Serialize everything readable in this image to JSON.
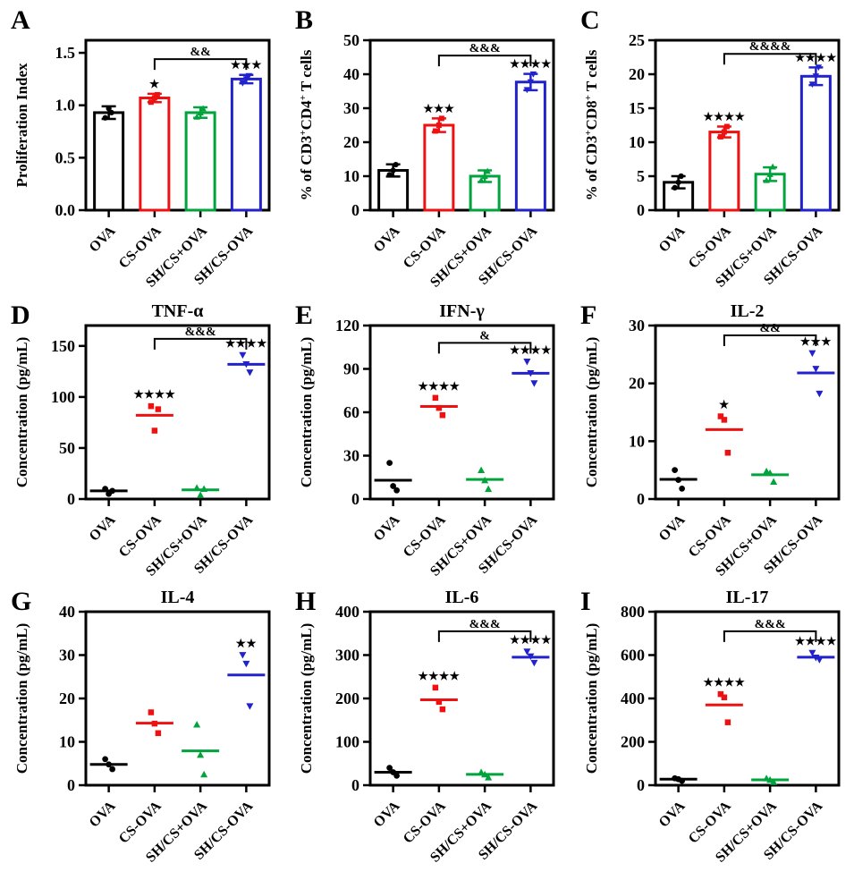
{
  "figure": {
    "background": "#ffffff",
    "panel_letters": [
      "A",
      "B",
      "C",
      "D",
      "E",
      "F",
      "G",
      "H",
      "I"
    ],
    "groups": [
      "OVA",
      "CS-OVA",
      "SH/CS+OVA",
      "SH/CS-OVA"
    ],
    "group_colors": [
      "#000000",
      "#EE1111",
      "#00A33C",
      "#2222CC"
    ],
    "group_markers": [
      "circle",
      "square",
      "triangle-up",
      "triangle-down"
    ]
  },
  "chart_data": [
    {
      "panel": "A",
      "type": "bar",
      "title": "",
      "ylabel": "Proliferation Index",
      "ylabel_segments": [
        {
          "t": "Proliferation Index"
        }
      ],
      "categories": [
        "OVA",
        "CS-OVA",
        "SH/CS+OVA",
        "SH/CS-OVA"
      ],
      "values": [
        0.93,
        1.07,
        0.93,
        1.25
      ],
      "errors": [
        0.06,
        0.04,
        0.05,
        0.04
      ],
      "points": [
        [
          0.88,
          0.93,
          0.97
        ],
        [
          1.03,
          1.1,
          1.07
        ],
        [
          0.89,
          0.97,
          0.93
        ],
        [
          1.21,
          1.28,
          1.25
        ]
      ],
      "sig": [
        "",
        "*",
        "",
        "***"
      ],
      "bracket": {
        "from": 1,
        "to": 3,
        "label": "&&",
        "y": 1.44
      },
      "yticks": [
        0,
        0.5,
        1,
        1.5
      ],
      "ytick_labels": [
        "0.0",
        "0.5",
        "1.0",
        "1.5"
      ],
      "ylim": [
        0,
        1.62
      ]
    },
    {
      "panel": "B",
      "type": "bar",
      "title": "",
      "ylabel": "% of CD3+CD4+ T cells",
      "ylabel_segments": [
        {
          "t": "% of CD3"
        },
        {
          "t": "+",
          "sup": true
        },
        {
          "t": "CD4"
        },
        {
          "t": "+",
          "sup": true
        },
        {
          "t": " T cells"
        }
      ],
      "categories": [
        "OVA",
        "CS-OVA",
        "SH/CS+OVA",
        "SH/CS-OVA"
      ],
      "values": [
        11.7,
        25.0,
        10.0,
        37.7
      ],
      "errors": [
        1.8,
        2.0,
        1.7,
        2.4
      ],
      "points": [
        [
          10.4,
          13.4,
          11.7
        ],
        [
          23.3,
          27,
          25
        ],
        [
          8.8,
          11.5,
          10
        ],
        [
          35.4,
          40,
          37.7
        ]
      ],
      "sig": [
        "",
        "***",
        "",
        "****"
      ],
      "bracket": {
        "from": 1,
        "to": 3,
        "label": "&&&",
        "y": 45.5
      },
      "yticks": [
        0,
        10,
        20,
        30,
        40,
        50
      ],
      "ytick_labels": [
        "0",
        "10",
        "20",
        "30",
        "40",
        "50"
      ],
      "ylim": [
        0,
        50
      ]
    },
    {
      "panel": "C",
      "type": "bar",
      "title": "",
      "ylabel": "% of CD3+CD8+ T cells",
      "ylabel_segments": [
        {
          "t": "% of CD3"
        },
        {
          "t": "+",
          "sup": true
        },
        {
          "t": "CD8"
        },
        {
          "t": "+",
          "sup": true
        },
        {
          "t": " T cells"
        }
      ],
      "categories": [
        "OVA",
        "CS-OVA",
        "SH/CS+OVA",
        "SH/CS-OVA"
      ],
      "values": [
        4.1,
        11.5,
        5.3,
        19.7
      ],
      "errors": [
        0.9,
        0.8,
        1.0,
        1.3
      ],
      "points": [
        [
          3.3,
          5,
          4.1
        ],
        [
          10.8,
          12.3,
          11.5
        ],
        [
          4.4,
          6.4,
          5.3
        ],
        [
          18.5,
          21,
          19.7
        ]
      ],
      "sig": [
        "",
        "****",
        "",
        "****"
      ],
      "bracket": {
        "from": 1,
        "to": 3,
        "label": "&&&&",
        "y": 23
      },
      "yticks": [
        0,
        5,
        10,
        15,
        20,
        25
      ],
      "ytick_labels": [
        "0",
        "5",
        "10",
        "15",
        "20",
        "25"
      ],
      "ylim": [
        0,
        25
      ]
    },
    {
      "panel": "D",
      "type": "scatter",
      "title": "TNF-α",
      "ylabel": "Concentration (pg/mL)",
      "ylabel_segments": [
        {
          "t": "Concentration (pg/mL)"
        }
      ],
      "categories": [
        "OVA",
        "CS-OVA",
        "SH/CS+OVA",
        "SH/CS-OVA"
      ],
      "means": [
        8,
        82,
        9,
        132
      ],
      "points": [
        [
          10,
          8,
          5
        ],
        [
          91,
          88,
          67
        ],
        [
          11,
          10,
          4
        ],
        [
          141,
          124,
          132
        ]
      ],
      "sig": [
        "",
        "****",
        "",
        "****"
      ],
      "bracket": {
        "from": 1,
        "to": 3,
        "label": "&&&",
        "y": 157
      },
      "yticks": [
        0,
        50,
        100,
        150
      ],
      "ytick_labels": [
        "0",
        "50",
        "100",
        "150"
      ],
      "ylim": [
        0,
        170
      ]
    },
    {
      "panel": "E",
      "type": "scatter",
      "title": "IFN-γ",
      "ylabel": "Concentration (pg/mL)",
      "ylabel_segments": [
        {
          "t": "Concentration (pg/mL)"
        }
      ],
      "categories": [
        "OVA",
        "CS-OVA",
        "SH/CS+OVA",
        "SH/CS-OVA"
      ],
      "means": [
        13,
        64,
        13.5,
        87
      ],
      "points": [
        [
          25,
          6,
          9
        ],
        [
          70,
          58,
          63
        ],
        [
          20,
          7,
          13
        ],
        [
          95,
          80,
          87
        ]
      ],
      "sig": [
        "",
        "****",
        "",
        "****"
      ],
      "bracket": {
        "from": 1,
        "to": 3,
        "label": "&",
        "y": 108
      },
      "yticks": [
        0,
        30,
        60,
        90,
        120
      ],
      "ytick_labels": [
        "0",
        "30",
        "60",
        "90",
        "120"
      ],
      "ylim": [
        0,
        120
      ]
    },
    {
      "panel": "F",
      "type": "scatter",
      "title": "IL-2",
      "ylabel": "Concentration (pg/mL)",
      "ylabel_segments": [
        {
          "t": "Concentration (pg/mL)"
        }
      ],
      "categories": [
        "OVA",
        "CS-OVA",
        "SH/CS+OVA",
        "SH/CS-OVA"
      ],
      "means": [
        3.4,
        12,
        4.2,
        21.8
      ],
      "points": [
        [
          5,
          1.8,
          3.3
        ],
        [
          14.3,
          8,
          13.7
        ],
        [
          4.8,
          3,
          4.5
        ],
        [
          25.2,
          18.2,
          22.5
        ]
      ],
      "sig": [
        "",
        "*",
        "",
        "***"
      ],
      "bracket": {
        "from": 1,
        "to": 3,
        "label": "&&",
        "y": 28.3
      },
      "yticks": [
        0,
        10,
        20,
        30
      ],
      "ytick_labels": [
        "0",
        "10",
        "20",
        "30"
      ],
      "ylim": [
        0,
        30
      ]
    },
    {
      "panel": "G",
      "type": "scatter",
      "title": "IL-4",
      "ylabel": "Concentration (pg/mL)",
      "ylabel_segments": [
        {
          "t": "Concentration (pg/mL)"
        }
      ],
      "categories": [
        "OVA",
        "CS-OVA",
        "SH/CS+OVA",
        "SH/CS-OVA"
      ],
      "means": [
        4.8,
        14.3,
        7.9,
        25.4
      ],
      "points": [
        [
          6,
          3.7,
          4.8
        ],
        [
          16.8,
          12,
          14.2
        ],
        [
          14,
          2.5,
          7
        ],
        [
          30,
          18.2,
          28
        ]
      ],
      "sig": [
        "",
        "",
        "",
        "**"
      ],
      "bracket": null,
      "yticks": [
        0,
        10,
        20,
        30,
        40
      ],
      "ytick_labels": [
        "0",
        "10",
        "20",
        "30",
        "40"
      ],
      "ylim": [
        0,
        40
      ]
    },
    {
      "panel": "H",
      "type": "scatter",
      "title": "IL-6",
      "ylabel": "Concentration (pg/mL)",
      "ylabel_segments": [
        {
          "t": "Concentration (pg/mL)"
        }
      ],
      "categories": [
        "OVA",
        "CS-OVA",
        "SH/CS+OVA",
        "SH/CS-OVA"
      ],
      "means": [
        30,
        197,
        25,
        295
      ],
      "points": [
        [
          40,
          22,
          30
        ],
        [
          225,
          175,
          192
        ],
        [
          30,
          18,
          25
        ],
        [
          308,
          282,
          297
        ]
      ],
      "sig": [
        "",
        "****",
        "",
        "****"
      ],
      "bracket": {
        "from": 1,
        "to": 3,
        "label": "&&&",
        "y": 355
      },
      "yticks": [
        0,
        100,
        200,
        300,
        400
      ],
      "ytick_labels": [
        "0",
        "100",
        "200",
        "300",
        "400"
      ],
      "ylim": [
        0,
        400
      ]
    },
    {
      "panel": "I",
      "type": "scatter",
      "title": "IL-17",
      "ylabel": "Concentration (pg/mL)",
      "ylabel_segments": [
        {
          "t": "Concentration (pg/mL)"
        }
      ],
      "categories": [
        "OVA",
        "CS-OVA",
        "SH/CS+OVA",
        "SH/CS-OVA"
      ],
      "means": [
        28,
        370,
        25,
        590
      ],
      "points": [
        [
          32,
          20,
          28
        ],
        [
          420,
          290,
          405
        ],
        [
          32,
          15,
          25
        ],
        [
          610,
          578,
          588
        ]
      ],
      "sig": [
        "",
        "****",
        "",
        "****"
      ],
      "bracket": {
        "from": 1,
        "to": 3,
        "label": "&&&",
        "y": 710
      },
      "yticks": [
        0,
        200,
        400,
        600,
        800
      ],
      "ytick_labels": [
        "0",
        "200",
        "400",
        "600",
        "800"
      ],
      "ylim": [
        0,
        800
      ]
    }
  ]
}
